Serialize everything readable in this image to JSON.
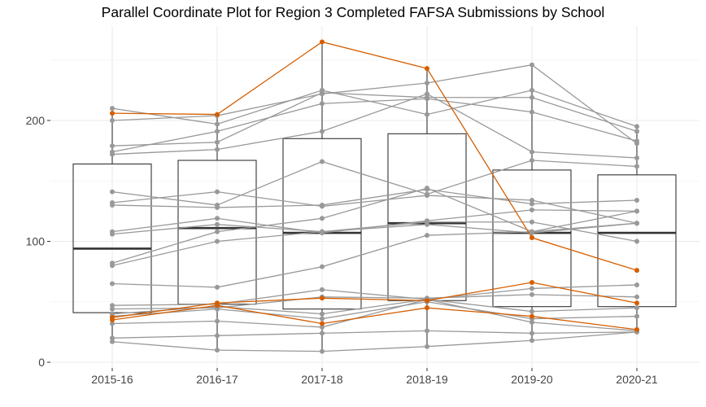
{
  "chart_data": {
    "type": "parallel-coordinates-boxplot",
    "title": "Parallel Coordinate Plot for Region 3 Completed FAFSA Submissions by School",
    "xlabel": "",
    "ylabel": "",
    "categories": [
      "2015-16",
      "2016-17",
      "2017-18",
      "2018-19",
      "2019-20",
      "2020-21"
    ],
    "ylim": [
      -2,
      266
    ],
    "yticks": [
      0,
      100,
      200
    ],
    "grid": true,
    "legend": "none",
    "colors": {
      "gray_line": "#999999",
      "highlight_line": "#d55e00",
      "box_stroke": "#333333",
      "grid": "#ebebeb"
    },
    "boxes": [
      {
        "q1": 41,
        "median": 94,
        "q3": 164,
        "whisker_low": 17,
        "whisker_high": 210
      },
      {
        "q1": 48,
        "median": 111,
        "q3": 167,
        "whisker_low": 10,
        "whisker_high": 205
      },
      {
        "q1": 44,
        "median": 107,
        "q3": 185,
        "whisker_low": 9,
        "whisker_high": 265
      },
      {
        "q1": 51,
        "median": 115,
        "q3": 189,
        "whisker_low": 13,
        "whisker_high": 243
      },
      {
        "q1": 46,
        "median": 107,
        "q3": 159,
        "whisker_low": 18,
        "whisker_high": 246
      },
      {
        "q1": 46,
        "median": 107,
        "q3": 155,
        "whisker_low": 25,
        "whisker_high": 195
      }
    ],
    "series": [
      {
        "highlight": false,
        "values": [
          210,
          197,
          225,
          205,
          225,
          195
        ]
      },
      {
        "highlight": false,
        "values": [
          200,
          204,
          222,
          231,
          246,
          181
        ]
      },
      {
        "highlight": false,
        "values": [
          179,
          182,
          223,
          219,
          219,
          191
        ]
      },
      {
        "highlight": false,
        "values": [
          174,
          191,
          214,
          218,
          207,
          183
        ]
      },
      {
        "highlight": false,
        "values": [
          172,
          176,
          191,
          222,
          174,
          169
        ]
      },
      {
        "highlight": false,
        "values": [
          141,
          130,
          166,
          139,
          167,
          162
        ]
      },
      {
        "highlight": false,
        "values": [
          132,
          141,
          129,
          138,
          134,
          115
        ]
      },
      {
        "highlight": false,
        "values": [
          130,
          128,
          130,
          143,
          131,
          134
        ]
      },
      {
        "highlight": false,
        "values": [
          108,
          119,
          107,
          117,
          126,
          125
        ]
      },
      {
        "highlight": false,
        "values": [
          106,
          114,
          108,
          116,
          116,
          100
        ]
      },
      {
        "highlight": false,
        "values": [
          82,
          108,
          119,
          144,
          108,
          125
        ]
      },
      {
        "highlight": false,
        "values": [
          80,
          100,
          108,
          114,
          107,
          115
        ]
      },
      {
        "highlight": false,
        "values": [
          65,
          62,
          79,
          105,
          108,
          115
        ]
      },
      {
        "highlight": false,
        "values": [
          47,
          48,
          60,
          52,
          61,
          64
        ]
      },
      {
        "highlight": false,
        "values": [
          44,
          45,
          54,
          53,
          56,
          54
        ]
      },
      {
        "highlight": false,
        "values": [
          40,
          46,
          40,
          52,
          42,
          45
        ]
      },
      {
        "highlight": false,
        "values": [
          38,
          44,
          36,
          50,
          36,
          38
        ]
      },
      {
        "highlight": false,
        "values": [
          32,
          34,
          29,
          52,
          33,
          26
        ]
      },
      {
        "highlight": false,
        "values": [
          20,
          22,
          24,
          26,
          24,
          25
        ]
      },
      {
        "highlight": false,
        "values": [
          17,
          10,
          9,
          13,
          18,
          25
        ]
      },
      {
        "highlight": true,
        "values": [
          206,
          205,
          265,
          243,
          103,
          76
        ]
      },
      {
        "highlight": true,
        "values": [
          37,
          49,
          53,
          51,
          66,
          49
        ]
      },
      {
        "highlight": true,
        "values": [
          35,
          47,
          32,
          45,
          38,
          27
        ]
      }
    ]
  }
}
